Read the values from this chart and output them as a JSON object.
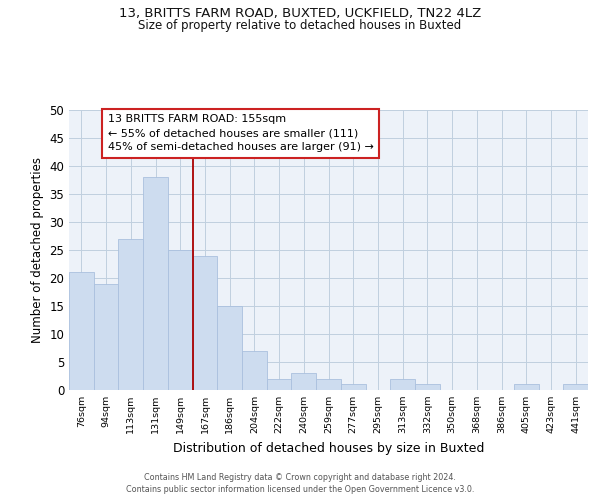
{
  "title1": "13, BRITTS FARM ROAD, BUXTED, UCKFIELD, TN22 4LZ",
  "title2": "Size of property relative to detached houses in Buxted",
  "xlabel": "Distribution of detached houses by size in Buxted",
  "ylabel": "Number of detached properties",
  "bar_labels": [
    "76sqm",
    "94sqm",
    "113sqm",
    "131sqm",
    "149sqm",
    "167sqm",
    "186sqm",
    "204sqm",
    "222sqm",
    "240sqm",
    "259sqm",
    "277sqm",
    "295sqm",
    "313sqm",
    "332sqm",
    "350sqm",
    "368sqm",
    "386sqm",
    "405sqm",
    "423sqm",
    "441sqm"
  ],
  "bar_values": [
    21,
    19,
    27,
    38,
    25,
    24,
    15,
    7,
    2,
    3,
    2,
    1,
    0,
    2,
    1,
    0,
    0,
    0,
    1,
    0,
    1
  ],
  "bar_color": "#cddcef",
  "bar_edgecolor": "#aac0de",
  "grid_color": "#c0cfdf",
  "bg_color": "#edf2f9",
  "vline_color": "#aa0000",
  "annotation_text": "13 BRITTS FARM ROAD: 155sqm\n← 55% of detached houses are smaller (111)\n45% of semi-detached houses are larger (91) →",
  "annotation_box_facecolor": "#ffffff",
  "annotation_box_edgecolor": "#cc2222",
  "footer": "Contains HM Land Registry data © Crown copyright and database right 2024.\nContains public sector information licensed under the Open Government Licence v3.0.",
  "ylim": [
    0,
    50
  ],
  "yticks": [
    0,
    5,
    10,
    15,
    20,
    25,
    30,
    35,
    40,
    45,
    50
  ],
  "vline_xidx": 4.5
}
